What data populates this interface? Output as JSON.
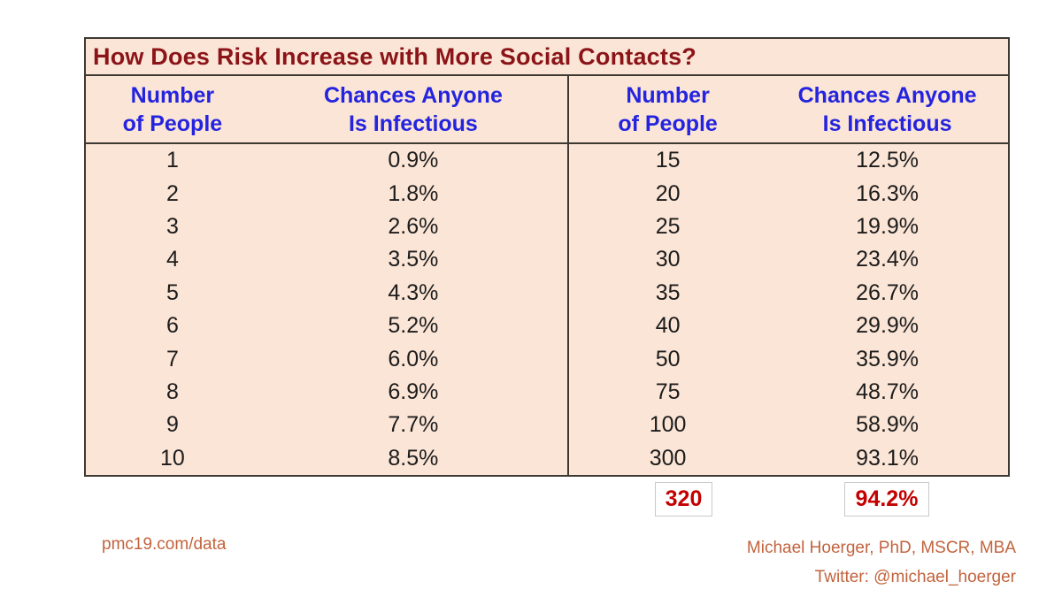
{
  "table": {
    "title": "How Does Risk Increase with More Social Contacts?",
    "header": {
      "number_line1": "Number",
      "number_line2": "of People",
      "chances_line1": "Chances Anyone",
      "chances_line2": "Is Infectious"
    },
    "left_rows": [
      {
        "people": "1",
        "chance": "0.9%"
      },
      {
        "people": "2",
        "chance": "1.8%"
      },
      {
        "people": "3",
        "chance": "2.6%"
      },
      {
        "people": "4",
        "chance": "3.5%"
      },
      {
        "people": "5",
        "chance": "4.3%"
      },
      {
        "people": "6",
        "chance": "5.2%"
      },
      {
        "people": "7",
        "chance": "6.0%"
      },
      {
        "people": "8",
        "chance": "6.9%"
      },
      {
        "people": "9",
        "chance": "7.7%"
      },
      {
        "people": "10",
        "chance": "8.5%"
      }
    ],
    "right_rows": [
      {
        "people": "15",
        "chance": "12.5%"
      },
      {
        "people": "20",
        "chance": "16.3%"
      },
      {
        "people": "25",
        "chance": "19.9%"
      },
      {
        "people": "30",
        "chance": "23.4%"
      },
      {
        "people": "35",
        "chance": "26.7%"
      },
      {
        "people": "40",
        "chance": "29.9%"
      },
      {
        "people": "50",
        "chance": "35.9%"
      },
      {
        "people": "75",
        "chance": "48.7%"
      },
      {
        "people": "100",
        "chance": "58.9%"
      },
      {
        "people": "300",
        "chance": "93.1%"
      }
    ]
  },
  "highlight": {
    "people": "320",
    "chance": "94.2%"
  },
  "footer": {
    "site": "pmc19.com/data",
    "credit_line1": "Michael Hoerger, PhD, MSCR, MBA",
    "credit_line2": "Twitter: @michael_hoerger"
  },
  "colors": {
    "table_background": "#FBE5D6",
    "border": "#3E3933",
    "title_red": "#8B1418",
    "header_blue": "#2424DF",
    "data_text": "#1C1C1C",
    "highlight_red": "#C40000",
    "highlight_box_border": "#C9C9C9",
    "footer_orange": "#C2633D"
  },
  "chart_data": {
    "type": "table",
    "title": "How Does Risk Increase with More Social Contacts?",
    "columns": [
      "Number of People",
      "Chances Anyone Is Infectious"
    ],
    "rows": [
      [
        1,
        "0.9%"
      ],
      [
        2,
        "1.8%"
      ],
      [
        3,
        "2.6%"
      ],
      [
        4,
        "3.5%"
      ],
      [
        5,
        "4.3%"
      ],
      [
        6,
        "5.2%"
      ],
      [
        7,
        "6.0%"
      ],
      [
        8,
        "6.9%"
      ],
      [
        9,
        "7.7%"
      ],
      [
        10,
        "8.5%"
      ],
      [
        15,
        "12.5%"
      ],
      [
        20,
        "16.3%"
      ],
      [
        25,
        "19.9%"
      ],
      [
        30,
        "23.4%"
      ],
      [
        35,
        "26.7%"
      ],
      [
        40,
        "29.9%"
      ],
      [
        50,
        "35.9%"
      ],
      [
        75,
        "48.7%"
      ],
      [
        100,
        "58.9%"
      ],
      [
        300,
        "93.1%"
      ],
      [
        320,
        "94.2%"
      ]
    ],
    "notes": "Highlighted row 320 / 94.2% shown in red boxes below the table"
  }
}
